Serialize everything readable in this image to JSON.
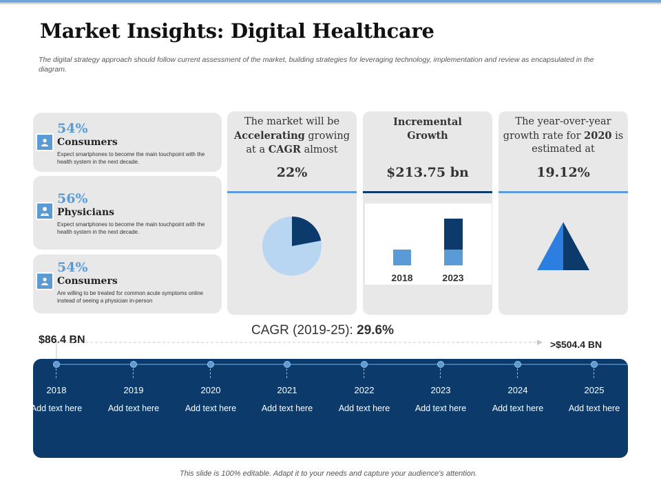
{
  "header": {
    "title": "Market Insights: Digital Healthcare",
    "subtitle": "The digital strategy approach should follow current assessment of the market, building strategies for leveraging technology, implementation and review as encapsulated in the diagram."
  },
  "cards": [
    {
      "percent": "54%",
      "role": "Consumers",
      "description": "Expect smartphones to become the main touchpoint with the health system in the next decade.",
      "icon": "person-icon"
    },
    {
      "percent": "56%",
      "role": "Physicians",
      "description": "Expect smartphones to become the main touchpoint with the health system in the next decade.",
      "icon": "doctor-icon"
    },
    {
      "percent": "54%",
      "role": "Consumers",
      "description": "Are willing to be treated for common acute symptoms online instead of seeing a physician in-person",
      "icon": "person-icon"
    }
  ],
  "panels": {
    "cagr": {
      "line1": "The market will be",
      "accel": "Accelerating",
      "line2a": " growing",
      "line3a": "at a ",
      "cagr": "CAGR",
      "line3b": " almost",
      "value": "22%",
      "pie_share": 0.22
    },
    "growth": {
      "title_line1": "Incremental",
      "title_line2": "Growth",
      "value": "$213.75 bn",
      "bar_labels": [
        "2018",
        "2023"
      ]
    },
    "yoy": {
      "line1": "The year-over-year",
      "line2a": "growth rate for ",
      "year": "2020",
      "line2b": " is",
      "line3": "estimated at",
      "value": "19.12%"
    }
  },
  "timeline": {
    "cagr_label": "CAGR (2019-25): ",
    "cagr_value": "29.6%",
    "start_value": "$86.4 BN",
    "end_value": ">$504.4 BN",
    "items": [
      {
        "year": "2018",
        "text": "Add text here"
      },
      {
        "year": "2019",
        "text": "Add text here"
      },
      {
        "year": "2020",
        "text": "Add text here"
      },
      {
        "year": "2021",
        "text": "Add text here"
      },
      {
        "year": "2022",
        "text": "Add text here"
      },
      {
        "year": "2023",
        "text": "Add text here"
      },
      {
        "year": "2024",
        "text": "Add text here"
      },
      {
        "year": "2025",
        "text": "Add text here"
      }
    ]
  },
  "footer": {
    "text": "This slide is 100% editable. Adapt it to your needs and capture your audience's attention."
  },
  "colors": {
    "navy": "#0b3a6b",
    "accent": "#5b9bd5",
    "light": "#b8d6f2",
    "bright": "#2c7fe0"
  }
}
